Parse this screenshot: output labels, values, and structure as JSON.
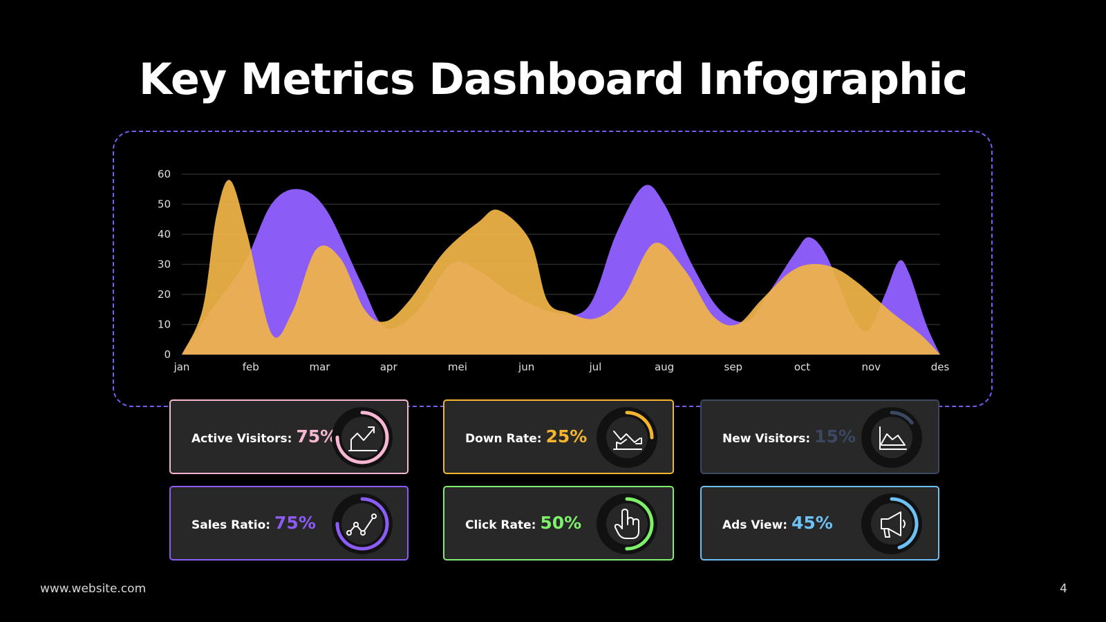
{
  "title": "Key Metrics Dashboard Infographic",
  "footer": {
    "website": "www.website.com",
    "page_number": "4"
  },
  "colors": {
    "purple": "#8b5cf6",
    "gold": "#f0b548",
    "background": "#000000",
    "card_bg": "#282828"
  },
  "chart_data": {
    "type": "area",
    "categories": [
      "jan",
      "feb",
      "mar",
      "apr",
      "mei",
      "jun",
      "jul",
      "aug",
      "sep",
      "oct",
      "nov",
      "des"
    ],
    "ylim": [
      0,
      60
    ],
    "yticks": [
      0,
      10,
      20,
      30,
      40,
      50,
      60
    ],
    "grid": true,
    "series": [
      {
        "color": "#8b5cf6",
        "points": [
          [
            0,
            0
          ],
          [
            0.4,
            14
          ],
          [
            0.9,
            30
          ],
          [
            1.3,
            50
          ],
          [
            1.7,
            55
          ],
          [
            2.1,
            48
          ],
          [
            2.6,
            24
          ],
          [
            2.95,
            9
          ],
          [
            3.4,
            14
          ],
          [
            3.9,
            30
          ],
          [
            4.3,
            28
          ],
          [
            4.8,
            20
          ],
          [
            5.4,
            14
          ],
          [
            5.9,
            16
          ],
          [
            6.3,
            40
          ],
          [
            6.7,
            56
          ],
          [
            7.0,
            50
          ],
          [
            7.4,
            30
          ],
          [
            7.8,
            15
          ],
          [
            8.2,
            11
          ],
          [
            8.5,
            20
          ],
          [
            8.9,
            34
          ],
          [
            9.1,
            39
          ],
          [
            9.35,
            33
          ],
          [
            9.7,
            14
          ],
          [
            9.95,
            8
          ],
          [
            10.2,
            20
          ],
          [
            10.4,
            31
          ],
          [
            10.55,
            27
          ],
          [
            10.8,
            10
          ],
          [
            11,
            0
          ]
        ]
      },
      {
        "color": "#f0b548",
        "points": [
          [
            0,
            0
          ],
          [
            0.3,
            15
          ],
          [
            0.5,
            46
          ],
          [
            0.7,
            58
          ],
          [
            0.95,
            40
          ],
          [
            1.3,
            7
          ],
          [
            1.6,
            14
          ],
          [
            1.95,
            35
          ],
          [
            2.3,
            32
          ],
          [
            2.65,
            15
          ],
          [
            2.95,
            11
          ],
          [
            3.3,
            18
          ],
          [
            3.8,
            34
          ],
          [
            4.3,
            44
          ],
          [
            4.6,
            48
          ],
          [
            5.05,
            38
          ],
          [
            5.3,
            18
          ],
          [
            5.6,
            14
          ],
          [
            6.0,
            12
          ],
          [
            6.4,
            19
          ],
          [
            6.85,
            37
          ],
          [
            7.3,
            28
          ],
          [
            7.7,
            13
          ],
          [
            8.05,
            10
          ],
          [
            8.4,
            18
          ],
          [
            8.8,
            27
          ],
          [
            9.1,
            30
          ],
          [
            9.45,
            29
          ],
          [
            9.8,
            24
          ],
          [
            10.3,
            14
          ],
          [
            10.7,
            7
          ],
          [
            11,
            0
          ]
        ]
      }
    ]
  },
  "metrics": [
    {
      "label": "Active Visitors:",
      "value": "75%",
      "percent": 75,
      "color": "#f7b6d2",
      "icon": "chart-up-icon"
    },
    {
      "label": "Down Rate:",
      "value": "25%",
      "percent": 25,
      "color": "#f6b52e",
      "icon": "chart-down-icon"
    },
    {
      "label": "New Visitors:",
      "value": "15%",
      "percent": 15,
      "color": "#3a4862",
      "icon": "area-chart-icon"
    },
    {
      "label": "Sales Ratio:",
      "value": "75%",
      "percent": 75,
      "color": "#8b5cf6",
      "icon": "line-chart-icon"
    },
    {
      "label": "Click Rate:",
      "value": "50%",
      "percent": 50,
      "color": "#7ef06b",
      "icon": "hand-pointer-icon"
    },
    {
      "label": "Ads View:",
      "value": "45%",
      "percent": 45,
      "color": "#6ec1f5",
      "icon": "megaphone-icon"
    }
  ]
}
